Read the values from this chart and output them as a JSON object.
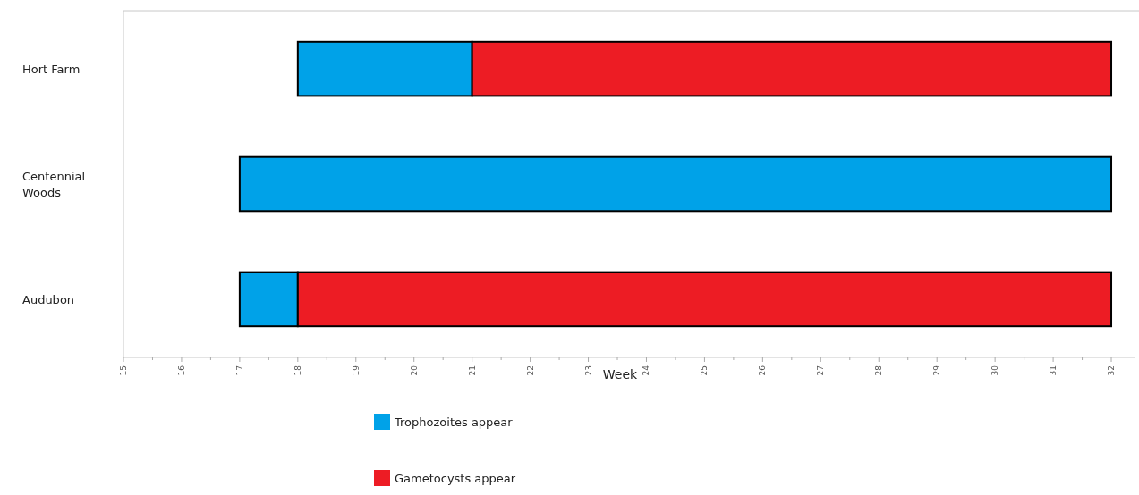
{
  "chart_data": {
    "type": "bar",
    "orientation": "horizontal",
    "xlabel": "Week",
    "categories": [
      "Hort Farm",
      "Centennial Woods",
      "Audubon"
    ],
    "series": [
      {
        "name": "Trophozoites appear",
        "color": "#00a2e8",
        "base": [
          18,
          17,
          17
        ],
        "values": [
          3,
          15,
          1
        ]
      },
      {
        "name": "Gametocysts appear",
        "color": "#ed1c24",
        "base": [
          21,
          null,
          18
        ],
        "values": [
          11,
          null,
          14
        ]
      }
    ],
    "xlim": [
      15,
      32.4
    ],
    "xticks": [
      15,
      {
        "value": 15.5,
        "label": null
      },
      16,
      {
        "value": 16.5,
        "label": null
      },
      17,
      {
        "value": 17.5,
        "label": null
      },
      18,
      {
        "value": 18.5,
        "label": null
      },
      19,
      {
        "value": 19.5,
        "label": null
      },
      20,
      {
        "value": 20.5,
        "label": null
      },
      21,
      {
        "value": 21.5,
        "label": null
      },
      22,
      {
        "value": 22.5,
        "label": null
      },
      23,
      {
        "value": 23.5,
        "label": null
      },
      24,
      {
        "value": 24.5,
        "label": null
      },
      25,
      {
        "value": 25.5,
        "label": null
      },
      26,
      {
        "value": 26.5,
        "label": null
      },
      27,
      {
        "value": 27.5,
        "label": null
      },
      28,
      {
        "value": 28.5,
        "label": null
      },
      29,
      {
        "value": 29.5,
        "label": null
      },
      30,
      {
        "value": 30.5,
        "label": null
      },
      31,
      {
        "value": 31.5,
        "label": null
      },
      32
    ],
    "legend": "bottom"
  }
}
